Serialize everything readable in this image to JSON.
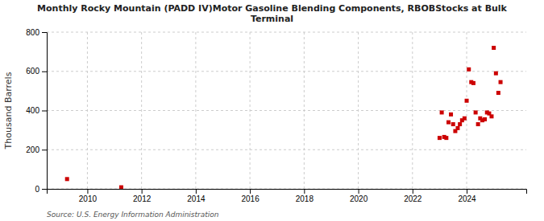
{
  "chart_data": {
    "type": "scatter",
    "title": "Monthly Rocky Mountain (PADD IV)Motor Gasoline Blending Components, RBOBStocks at Bulk\nTerminal",
    "y_label": "Thousand Barrels",
    "annotations": [
      "Source: U.S. Energy Information Administration"
    ],
    "x": [
      2009.25,
      2011.25,
      2023.0,
      2023.08,
      2023.17,
      2023.25,
      2023.33,
      2023.42,
      2023.5,
      2023.58,
      2023.67,
      2023.75,
      2023.83,
      2023.92,
      2024.0,
      2024.08,
      2024.17,
      2024.25,
      2024.33,
      2024.42,
      2024.5,
      2024.58,
      2024.67,
      2024.75,
      2024.83,
      2024.92,
      2025.0,
      2025.08,
      2025.17,
      2025.25
    ],
    "values": [
      50,
      8,
      260,
      390,
      265,
      260,
      340,
      380,
      330,
      295,
      310,
      330,
      350,
      360,
      450,
      610,
      545,
      540,
      390,
      330,
      360,
      350,
      355,
      390,
      385,
      370,
      720,
      590,
      490,
      545
    ],
    "color": "#cc0000",
    "marker": "square",
    "xlim": [
      2008.5,
      2026.2
    ],
    "xticks": [
      2010,
      2012,
      2014,
      2016,
      2018,
      2020,
      2022,
      2024
    ],
    "ylim": [
      0,
      800
    ],
    "yticks": [
      0,
      200,
      400,
      600,
      800
    ],
    "grid": true
  }
}
